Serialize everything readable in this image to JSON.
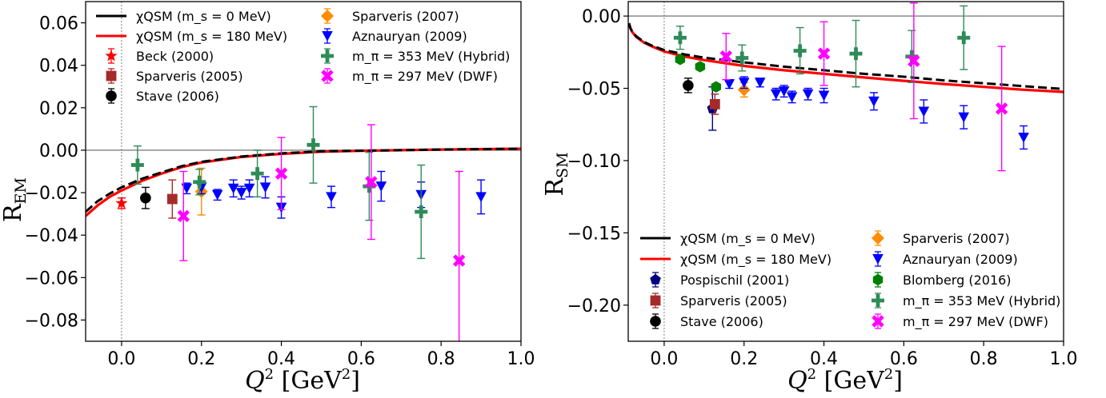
{
  "chart_data": [
    {
      "type": "scatter",
      "xlabel": "Q^2 [GeV^2]",
      "ylabel": "R_EM",
      "xlim": [
        -0.09,
        1.0
      ],
      "ylim": [
        -0.09,
        0.07
      ],
      "x_ticks": [
        "0.0",
        "0.2",
        "0.4",
        "0.6",
        "0.8",
        "1.0"
      ],
      "y_ticks": [
        "0.06",
        "0.04",
        "0.02",
        "0.00",
        "−0.02",
        "−0.04",
        "−0.06",
        "−0.08"
      ],
      "reference_lines": {
        "horizontal_y": 0.0,
        "vertical_x": 0.0
      },
      "legend_position": "top-left",
      "curves": [
        {
          "name": "χQSM (m_s = 0 MeV)",
          "color": "#000000",
          "dashed": true,
          "x": [
            -0.09,
            -0.06,
            -0.03,
            0.0,
            0.05,
            0.1,
            0.15,
            0.2,
            0.3,
            0.4,
            0.5,
            0.6,
            0.7,
            0.8,
            0.9,
            1.0
          ],
          "y": [
            -0.029,
            -0.024,
            -0.0205,
            -0.0175,
            -0.0135,
            -0.0105,
            -0.0075,
            -0.0055,
            -0.003,
            -0.0015,
            -0.0005,
            -0.0002,
            0.0,
            0.0003,
            0.0005,
            0.0007
          ]
        },
        {
          "name": "χQSM (m_s = 180 MeV)",
          "color": "#ff0000",
          "dashed": false,
          "x": [
            -0.09,
            -0.06,
            -0.03,
            0.0,
            0.05,
            0.1,
            0.15,
            0.2,
            0.3,
            0.4,
            0.5,
            0.6,
            0.7,
            0.8,
            0.9,
            1.0
          ],
          "y": [
            -0.031,
            -0.026,
            -0.022,
            -0.019,
            -0.0145,
            -0.011,
            -0.008,
            -0.0058,
            -0.0032,
            -0.0017,
            -0.0007,
            -0.0003,
            0.0,
            0.0003,
            0.0005,
            0.0007
          ]
        }
      ],
      "series": [
        {
          "name": "Beck (2000)",
          "color": "#ff0000",
          "marker": "star",
          "points": [
            {
              "x": 0.0,
              "y": -0.025,
              "err": 0.0025
            }
          ]
        },
        {
          "name": "Sparveris (2005)",
          "color": "#a52a2a",
          "marker": "square",
          "points": [
            {
              "x": 0.127,
              "y": -0.023,
              "err": 0.009
            }
          ]
        },
        {
          "name": "Stave (2006)",
          "color": "#000000",
          "marker": "circle",
          "points": [
            {
              "x": 0.06,
              "y": -0.0225,
              "err": 0.005
            }
          ]
        },
        {
          "name": "Sparveris (2007)",
          "color": "#ff8c00",
          "marker": "diamond",
          "points": [
            {
              "x": 0.2,
              "y": -0.0195,
              "err": 0.011
            }
          ]
        },
        {
          "name": "Aznauryan (2009)",
          "color": "#0000ff",
          "marker": "triangle-down",
          "points": [
            {
              "x": 0.163,
              "y": -0.018,
              "err": 0.0025
            },
            {
              "x": 0.2,
              "y": -0.0175,
              "err": 0.003
            },
            {
              "x": 0.24,
              "y": -0.021,
              "err": 0.0025
            },
            {
              "x": 0.28,
              "y": -0.018,
              "err": 0.004
            },
            {
              "x": 0.3,
              "y": -0.02,
              "err": 0.003
            },
            {
              "x": 0.32,
              "y": -0.018,
              "err": 0.004
            },
            {
              "x": 0.36,
              "y": -0.0175,
              "err": 0.005
            },
            {
              "x": 0.4,
              "y": -0.027,
              "err": 0.005
            },
            {
              "x": 0.525,
              "y": -0.022,
              "err": 0.005
            },
            {
              "x": 0.65,
              "y": -0.017,
              "err": 0.007
            },
            {
              "x": 0.75,
              "y": -0.021,
              "err": 0.006
            },
            {
              "x": 0.9,
              "y": -0.022,
              "err": 0.008
            }
          ]
        },
        {
          "name": "m_π = 353 MeV (Hybrid)",
          "color": "#2e8b57",
          "marker": "plus",
          "points": [
            {
              "x": 0.04,
              "y": -0.007,
              "err": 0.009
            },
            {
              "x": 0.195,
              "y": -0.015,
              "err": 0.006
            },
            {
              "x": 0.34,
              "y": -0.011,
              "err": 0.011
            },
            {
              "x": 0.48,
              "y": 0.0025,
              "err": 0.018
            },
            {
              "x": 0.62,
              "y": -0.017,
              "err": 0.016
            },
            {
              "x": 0.75,
              "y": -0.029,
              "err": 0.022
            }
          ]
        },
        {
          "name": "m_π = 297 MeV (DWF)",
          "color": "#ff00ff",
          "marker": "x",
          "points": [
            {
              "x": 0.155,
              "y": -0.031,
              "err": 0.021
            },
            {
              "x": 0.4,
              "y": -0.011,
              "err": 0.017
            },
            {
              "x": 0.625,
              "y": -0.015,
              "err": 0.027
            },
            {
              "x": 0.845,
              "y": -0.052,
              "err": 0.042
            }
          ]
        }
      ]
    },
    {
      "type": "scatter",
      "xlabel": "Q^2 [GeV^2]",
      "ylabel": "R_SM",
      "xlim": [
        -0.09,
        1.0
      ],
      "ylim": [
        -0.225,
        0.01
      ],
      "x_ticks": [
        "0.0",
        "0.2",
        "0.4",
        "0.6",
        "0.8",
        "1.0"
      ],
      "y_ticks": [
        "0.00",
        "−0.05",
        "−0.10",
        "−0.15",
        "−0.20"
      ],
      "reference_lines": {
        "horizontal_y": 0.0,
        "vertical_x": 0.0
      },
      "legend_position": "bottom",
      "curves": [
        {
          "name": "χQSM (m_s = 0 MeV)",
          "color": "#000000",
          "dashed": true,
          "x": [
            -0.088,
            -0.085,
            -0.08,
            -0.07,
            -0.05,
            -0.03,
            0.0,
            0.05,
            0.1,
            0.2,
            0.3,
            0.4,
            0.5,
            0.6,
            0.7,
            0.8,
            0.9,
            1.0
          ],
          "y": [
            -0.005,
            -0.008,
            -0.011,
            -0.014,
            -0.018,
            -0.0205,
            -0.0235,
            -0.0265,
            -0.0288,
            -0.032,
            -0.035,
            -0.0375,
            -0.04,
            -0.042,
            -0.0445,
            -0.0465,
            -0.0485,
            -0.0505
          ]
        },
        {
          "name": "χQSM (m_s = 180 MeV)",
          "color": "#ff0000",
          "dashed": false,
          "x": [
            -0.088,
            -0.085,
            -0.08,
            -0.07,
            -0.05,
            -0.03,
            0.0,
            0.05,
            0.1,
            0.2,
            0.3,
            0.4,
            0.5,
            0.6,
            0.7,
            0.8,
            0.9,
            1.0
          ],
          "y": [
            -0.005,
            -0.008,
            -0.011,
            -0.0145,
            -0.0185,
            -0.021,
            -0.0245,
            -0.028,
            -0.0305,
            -0.0345,
            -0.0375,
            -0.04,
            -0.0425,
            -0.0448,
            -0.047,
            -0.049,
            -0.051,
            -0.0525
          ]
        }
      ],
      "series": [
        {
          "name": "Pospischil (2001)",
          "color": "#000080",
          "marker": "pentagon",
          "points": [
            {
              "x": 0.121,
              "y": -0.064,
              "err": 0.015
            }
          ]
        },
        {
          "name": "Sparveris (2005)",
          "color": "#a52a2a",
          "marker": "square",
          "points": [
            {
              "x": 0.127,
              "y": -0.061,
              "err": 0.007
            }
          ]
        },
        {
          "name": "Stave (2006)",
          "color": "#000000",
          "marker": "circle",
          "points": [
            {
              "x": 0.06,
              "y": -0.048,
              "err": 0.005
            }
          ]
        },
        {
          "name": "Sparveris (2007)",
          "color": "#ff8c00",
          "marker": "diamond",
          "points": [
            {
              "x": 0.2,
              "y": -0.051,
              "err": 0.005
            }
          ]
        },
        {
          "name": "Aznauryan (2009)",
          "color": "#0000ff",
          "marker": "triangle-down",
          "points": [
            {
              "x": 0.163,
              "y": -0.047,
              "err": 0.003
            },
            {
              "x": 0.2,
              "y": -0.046,
              "err": 0.004
            },
            {
              "x": 0.24,
              "y": -0.046,
              "err": 0.003
            },
            {
              "x": 0.28,
              "y": -0.054,
              "err": 0.004
            },
            {
              "x": 0.3,
              "y": -0.052,
              "err": 0.004
            },
            {
              "x": 0.32,
              "y": -0.056,
              "err": 0.004
            },
            {
              "x": 0.36,
              "y": -0.054,
              "err": 0.004
            },
            {
              "x": 0.4,
              "y": -0.055,
              "err": 0.005
            },
            {
              "x": 0.525,
              "y": -0.059,
              "err": 0.006
            },
            {
              "x": 0.65,
              "y": -0.066,
              "err": 0.008
            },
            {
              "x": 0.75,
              "y": -0.07,
              "err": 0.008
            },
            {
              "x": 0.9,
              "y": -0.084,
              "err": 0.008
            }
          ]
        },
        {
          "name": "Blomberg (2016)",
          "color": "#008000",
          "marker": "hexagon",
          "points": [
            {
              "x": 0.04,
              "y": -0.03,
              "err": 0.002
            },
            {
              "x": 0.09,
              "y": -0.035,
              "err": 0.002
            },
            {
              "x": 0.13,
              "y": -0.049,
              "err": 0.002
            }
          ]
        },
        {
          "name": "m_π = 353 MeV (Hybrid)",
          "color": "#2e8b57",
          "marker": "plus",
          "points": [
            {
              "x": 0.04,
              "y": -0.015,
              "err": 0.008
            },
            {
              "x": 0.195,
              "y": -0.029,
              "err": 0.009
            },
            {
              "x": 0.34,
              "y": -0.024,
              "err": 0.016
            },
            {
              "x": 0.48,
              "y": -0.026,
              "err": 0.023
            },
            {
              "x": 0.62,
              "y": -0.028,
              "err": 0.018
            },
            {
              "x": 0.75,
              "y": -0.015,
              "err": 0.022
            }
          ]
        },
        {
          "name": "m_π = 297 MeV (DWF)",
          "color": "#ff00ff",
          "marker": "x",
          "points": [
            {
              "x": 0.155,
              "y": -0.028,
              "err": 0.016
            },
            {
              "x": 0.4,
              "y": -0.026,
              "err": 0.022
            },
            {
              "x": 0.625,
              "y": -0.031,
              "err": 0.04
            },
            {
              "x": 0.845,
              "y": -0.064,
              "err": 0.043
            }
          ]
        }
      ]
    }
  ]
}
